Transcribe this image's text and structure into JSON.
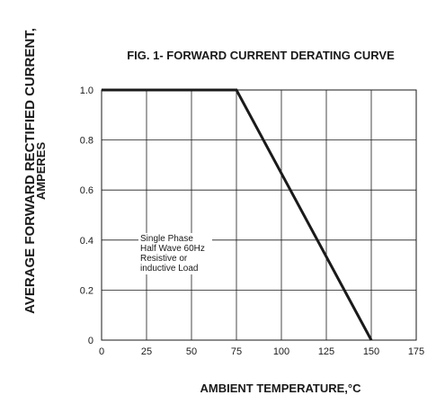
{
  "chart_data": {
    "type": "line",
    "title": "FIG. 1- FORWARD CURRENT DERATING CURVE",
    "xlabel": "AMBIENT TEMPERATURE,°C",
    "ylabel": [
      "AVERAGE FORWARD RECTIFIED CURRENT,",
      "AMPERES"
    ],
    "xlim": [
      0,
      175
    ],
    "ylim": [
      0,
      1.0
    ],
    "xticks": [
      "0",
      "25",
      "50",
      "75",
      "100",
      "125",
      "150",
      "175"
    ],
    "yticks": [
      "0",
      "0.2",
      "0.4",
      "0.6",
      "0.8",
      "1.0"
    ],
    "grid": true,
    "series": [
      {
        "x": [
          0,
          75,
          150
        ],
        "y": [
          1.0,
          1.0,
          0
        ]
      }
    ],
    "annotation": [
      "Single Phase",
      "Half Wave 60Hz",
      "Resistive or",
      "inductive Load"
    ],
    "colors": {
      "line": "#1a1a1a",
      "grid": "#1a1a1a",
      "text": "#1a1a1a"
    }
  }
}
